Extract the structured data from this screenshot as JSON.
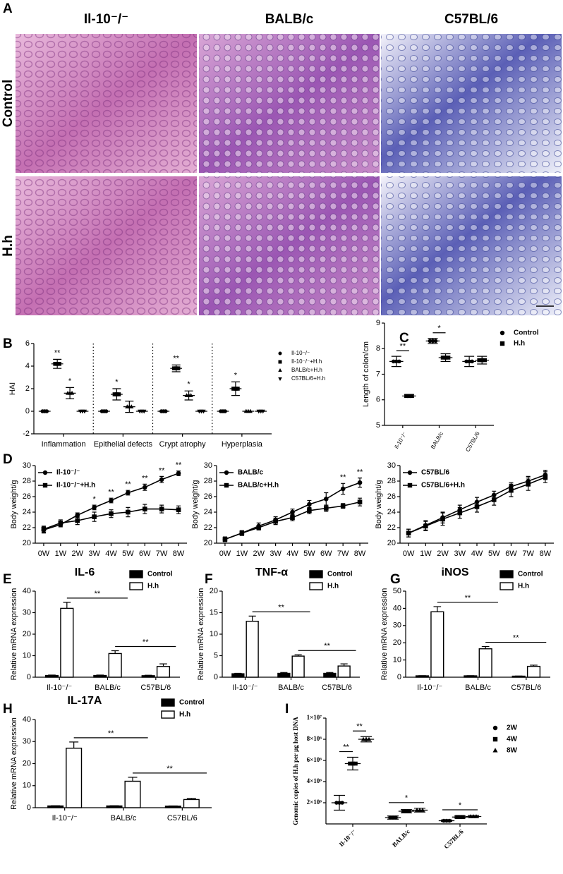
{
  "panel_a": {
    "label": "A",
    "columns": [
      "Il-10⁻/⁻",
      "BALB/c",
      "C57BL/6"
    ],
    "rows": [
      "Control",
      "H.h"
    ]
  },
  "chart_data": [
    {
      "panel": "B",
      "type": "dot",
      "ylabel": "HAI",
      "legend": "right",
      "separators": true,
      "categories": [
        "Inflammation",
        "Epithelial defects",
        "Crypt atrophy",
        "Hyperplasia"
      ],
      "ylim": [
        -2,
        6
      ],
      "yticks": [
        -2,
        0,
        2,
        4,
        6
      ],
      "series": [
        {
          "name": "Il-10⁻/⁻",
          "color": "#000000",
          "marker": "circle",
          "values": [
            0,
            0,
            0,
            0
          ],
          "errors": [
            0,
            0,
            0,
            0
          ]
        },
        {
          "name": "Il-10⁻/⁻+H.h",
          "color": "#000000",
          "marker": "square",
          "values": [
            4.2,
            1.5,
            3.8,
            2.0
          ],
          "errors": [
            0.4,
            0.5,
            0.3,
            0.6
          ],
          "significance": [
            "**",
            "*",
            "**",
            "*"
          ]
        },
        {
          "name": "BALB/c+H.h",
          "color": "#000000",
          "marker": "triangle",
          "values": [
            1.6,
            0.4,
            1.4,
            0
          ],
          "errors": [
            0.5,
            0.5,
            0.4,
            0
          ],
          "significance": [
            "*",
            null,
            "*",
            null
          ]
        },
        {
          "name": "C57BL/6+H.h",
          "color": "#000000",
          "marker": "triangle-down",
          "values": [
            0,
            0,
            0,
            0
          ],
          "errors": [
            0,
            0,
            0,
            0
          ]
        }
      ]
    },
    {
      "panel": "C",
      "type": "dot",
      "ylabel": "Length of colon/cm",
      "legend": "right",
      "categories": [
        "Il-10⁻/⁻",
        "BALB/c",
        "C57BL/6"
      ],
      "ylim": [
        5,
        9
      ],
      "yticks": [
        5,
        6,
        7,
        8,
        9
      ],
      "series": [
        {
          "name": "Control",
          "color": "#000000",
          "marker": "circle",
          "values": [
            7.5,
            8.3,
            7.5
          ],
          "errors": [
            0.2,
            0.1,
            0.2
          ]
        },
        {
          "name": "H.h",
          "color": "#000000",
          "marker": "square",
          "values": [
            6.15,
            7.65,
            7.55
          ],
          "errors": [
            0.05,
            0.15,
            0.15
          ]
        }
      ],
      "significance": [
        "**",
        "*",
        null
      ]
    },
    {
      "panel": "D",
      "type": "line",
      "ylabel": "Body weight/g",
      "legend": "upper left",
      "categories": [
        "0W",
        "1W",
        "2W",
        "3W",
        "4W",
        "5W",
        "6W",
        "7W",
        "8W"
      ],
      "ylim": [
        20,
        30
      ],
      "yticks": [
        20,
        22,
        24,
        26,
        28,
        30
      ],
      "series": [
        {
          "name": "Il-10⁻/⁻",
          "color": "#000000",
          "marker": "circle",
          "values": [
            21.7,
            22.4,
            23.6,
            24.6,
            25.5,
            26.5,
            27.2,
            28.2,
            29.0
          ],
          "errors": [
            0.4,
            0.3,
            0.3,
            0.3,
            0.3,
            0.3,
            0.4,
            0.4,
            0.3
          ],
          "significance": [
            null,
            null,
            null,
            "*",
            "**",
            "**",
            "**",
            "**",
            "**"
          ]
        },
        {
          "name": "Il-10⁻/⁻+H.h",
          "color": "#000000",
          "marker": "square",
          "values": [
            21.8,
            22.6,
            22.9,
            23.4,
            23.8,
            24.0,
            24.4,
            24.4,
            24.3
          ],
          "errors": [
            0.4,
            0.4,
            0.5,
            0.6,
            0.5,
            0.6,
            0.6,
            0.5,
            0.5
          ]
        }
      ]
    },
    {
      "type": "line",
      "ylabel": "Body weight/g",
      "legend": "upper left",
      "categories": [
        "0W",
        "1W",
        "2W",
        "3W",
        "4W",
        "5W",
        "6W",
        "7W",
        "8W"
      ],
      "ylim": [
        20,
        30
      ],
      "yticks": [
        20,
        22,
        24,
        26,
        28,
        30
      ],
      "series": [
        {
          "name": "BALB/c",
          "color": "#000000",
          "marker": "circle",
          "values": [
            20.5,
            21.3,
            22.2,
            23.0,
            24.0,
            25.0,
            25.7,
            27.0,
            27.8
          ],
          "errors": [
            0.3,
            0.3,
            0.4,
            0.4,
            0.4,
            0.5,
            0.8,
            0.7,
            0.6
          ],
          "significance": [
            null,
            null,
            null,
            null,
            null,
            null,
            null,
            "**",
            "**"
          ]
        },
        {
          "name": "BALB/c+H.h",
          "color": "#000000",
          "marker": "square",
          "values": [
            20.5,
            21.3,
            22.0,
            22.8,
            23.3,
            24.2,
            24.5,
            24.8,
            25.3
          ],
          "errors": [
            0.3,
            0.3,
            0.3,
            0.4,
            0.4,
            0.4,
            0.4,
            0.3,
            0.5
          ]
        }
      ]
    },
    {
      "type": "line",
      "ylabel": "Body weight/g",
      "legend": "upper left",
      "categories": [
        "0W",
        "1W",
        "2W",
        "3W",
        "4W",
        "5W",
        "6W",
        "7W",
        "8W"
      ],
      "ylim": [
        20,
        30
      ],
      "yticks": [
        20,
        22,
        24,
        26,
        28,
        30
      ],
      "series": [
        {
          "name": "C57BL/6",
          "color": "#000000",
          "marker": "circle",
          "values": [
            21.3,
            22.3,
            23.3,
            24.3,
            25.3,
            26.2,
            27.3,
            28.0,
            28.8
          ],
          "errors": [
            0.5,
            0.6,
            0.7,
            0.6,
            0.6,
            0.5,
            0.5,
            0.6,
            0.6
          ]
        },
        {
          "name": "C57BL/6+H.h",
          "color": "#000000",
          "marker": "square",
          "values": [
            21.3,
            22.2,
            23.1,
            23.9,
            24.7,
            25.6,
            26.8,
            27.6,
            28.5
          ],
          "errors": [
            0.5,
            0.6,
            0.8,
            0.7,
            0.7,
            0.7,
            0.8,
            0.8,
            0.7
          ]
        }
      ]
    },
    {
      "panel": "E",
      "type": "bar",
      "title": "IL-6",
      "ylabel": "Relative mRNA expression",
      "legend": "upper right",
      "categories": [
        "Il-10⁻/⁻",
        "BALB/c",
        "C57BL/6"
      ],
      "ylim": [
        0,
        40
      ],
      "yticks": [
        0,
        10,
        20,
        30,
        40
      ],
      "series": [
        {
          "name": "Control",
          "color": "#000000",
          "values": [
            0.8,
            0.8,
            0.7
          ],
          "errors": [
            0.2,
            0.2,
            0.2
          ]
        },
        {
          "name": "H.h",
          "color": "#ffffff",
          "values": [
            32,
            11,
            5
          ],
          "errors": [
            2.8,
            1.3,
            1.2
          ]
        }
      ],
      "significance": [
        "**",
        "**"
      ]
    },
    {
      "panel": "F",
      "type": "bar",
      "title": "TNF-α",
      "ylabel": "Relative mRNA expression",
      "legend": "upper right",
      "categories": [
        "Il-10⁻/⁻",
        "BALB/c",
        "C57BL/6"
      ],
      "ylim": [
        0,
        20
      ],
      "yticks": [
        0,
        5,
        10,
        15,
        20
      ],
      "series": [
        {
          "name": "Control",
          "color": "#000000",
          "values": [
            0.8,
            0.9,
            0.9
          ],
          "errors": [
            0.1,
            0.2,
            0.2
          ]
        },
        {
          "name": "H.h",
          "color": "#ffffff",
          "values": [
            13,
            4.9,
            2.6
          ],
          "errors": [
            1.2,
            0.3,
            0.5
          ]
        }
      ],
      "significance": [
        "**",
        "**"
      ]
    },
    {
      "panel": "G",
      "type": "bar",
      "title": "iNOS",
      "ylabel": "Relative mRNA expression",
      "legend": "upper right",
      "categories": [
        "Il-10⁻/⁻",
        "BALB/c",
        "C57BL/6"
      ],
      "ylim": [
        0,
        50
      ],
      "yticks": [
        0,
        10,
        20,
        30,
        40,
        50
      ],
      "series": [
        {
          "name": "Control",
          "color": "#000000",
          "values": [
            0.8,
            0.8,
            0.6
          ],
          "errors": [
            0.1,
            0.1,
            0.1
          ]
        },
        {
          "name": "H.h",
          "color": "#ffffff",
          "values": [
            38,
            16.5,
            6.3
          ],
          "errors": [
            3,
            1.3,
            0.7
          ]
        }
      ],
      "significance": [
        "**",
        "**"
      ]
    },
    {
      "panel": "H",
      "type": "bar",
      "title": "IL-17A",
      "ylabel": "Relative mRNA expression",
      "legend": "upper right",
      "categories": [
        "Il-10⁻/⁻",
        "BALB/c",
        "C57BL/6"
      ],
      "ylim": [
        0,
        40
      ],
      "yticks": [
        0,
        10,
        20,
        30,
        40
      ],
      "series": [
        {
          "name": "Control",
          "color": "#000000",
          "values": [
            0.8,
            0.8,
            0.7
          ],
          "errors": [
            0.1,
            0.1,
            0.1
          ]
        },
        {
          "name": "H.h",
          "color": "#ffffff",
          "values": [
            27,
            12,
            3.7
          ],
          "errors": [
            2.8,
            1.8,
            0.5
          ]
        }
      ],
      "significance": [
        "**",
        "**"
      ]
    },
    {
      "panel": "I",
      "type": "dot",
      "ylabel": "Genomic copies of H.h per μg host DNA",
      "legend": "right",
      "categories": [
        "Il-10⁻/⁻",
        "BALB/c",
        "C57BL/6"
      ],
      "ylim": [
        0,
        10000000
      ],
      "yticks": [
        {
          "value": 2000000,
          "label": "2×10⁶"
        },
        {
          "value": 4000000,
          "label": "4×10⁶"
        },
        {
          "value": 6000000,
          "label": "6×10⁶"
        },
        {
          "value": 8000000,
          "label": "8×10⁶"
        },
        {
          "value": 10000000,
          "label": "1×10⁷"
        }
      ],
      "series": [
        {
          "name": "2W",
          "color": "#000000",
          "marker": "circle",
          "values": [
            2000000,
            600000,
            300000
          ],
          "errors": [
            700000,
            150000,
            80000
          ]
        },
        {
          "name": "4W",
          "color": "#000000",
          "marker": "square",
          "values": [
            5700000,
            1200000,
            650000
          ],
          "errors": [
            600000,
            150000,
            100000
          ]
        },
        {
          "name": "8W",
          "color": "#000000",
          "marker": "triangle",
          "values": [
            8000000,
            1300000,
            700000
          ],
          "errors": [
            250000,
            180000,
            100000
          ]
        }
      ],
      "significance": [
        [
          "**",
          "**"
        ],
        [
          "*"
        ],
        [
          "*"
        ]
      ]
    }
  ]
}
